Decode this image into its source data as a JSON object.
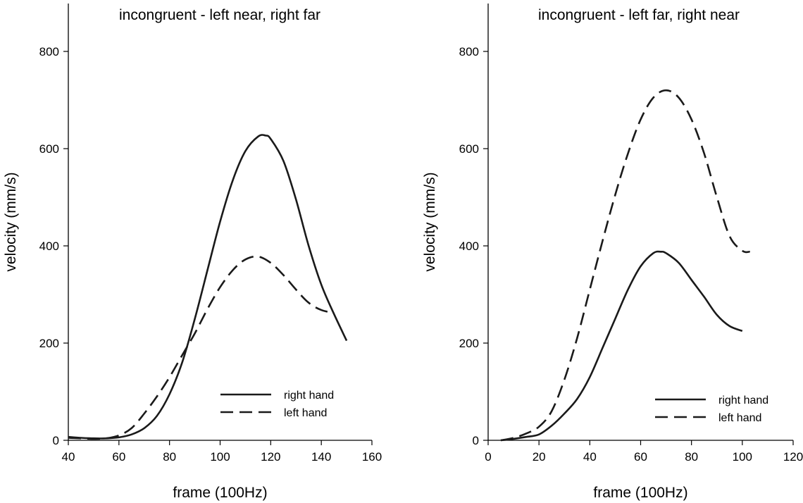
{
  "chart_data": [
    {
      "type": "line",
      "title": "incongruent - left near, right far",
      "xlabel": "frame (100Hz)",
      "ylabel": "velocity (mm/s)",
      "xlim": [
        40,
        160
      ],
      "ylim": [
        0,
        880
      ],
      "xticks": [
        40,
        60,
        80,
        100,
        120,
        140,
        160
      ],
      "yticks": [
        0,
        200,
        400,
        600,
        800
      ],
      "xtick_labels": [
        "40",
        "60",
        "80",
        "100",
        "120",
        "140",
        "160"
      ],
      "ytick_labels": [
        "0",
        "200",
        "400",
        "600",
        "800"
      ],
      "legend_position": "bottom-right",
      "series": [
        {
          "name": "right hand",
          "style": "solid",
          "x": [
            40,
            45,
            50,
            55,
            60,
            65,
            70,
            75,
            80,
            85,
            90,
            95,
            100,
            105,
            110,
            115,
            118,
            120,
            125,
            130,
            135,
            140,
            145,
            150
          ],
          "y": [
            7,
            5,
            4,
            4,
            6,
            12,
            25,
            50,
            95,
            160,
            250,
            350,
            450,
            535,
            595,
            625,
            627,
            620,
            575,
            495,
            400,
            320,
            260,
            205
          ]
        },
        {
          "name": "left hand",
          "style": "dashed",
          "x": [
            40,
            45,
            50,
            55,
            60,
            65,
            70,
            75,
            80,
            85,
            90,
            95,
            100,
            105,
            110,
            115,
            120,
            125,
            130,
            135,
            140,
            145
          ],
          "y": [
            5,
            4,
            3,
            4,
            10,
            25,
            55,
            90,
            130,
            175,
            220,
            270,
            315,
            350,
            372,
            378,
            365,
            340,
            310,
            283,
            268,
            262
          ]
        }
      ]
    },
    {
      "type": "line",
      "title": "incongruent - left far, right near",
      "xlabel": "frame (100Hz)",
      "ylabel": "velocity (mm/s)",
      "xlim": [
        0,
        120
      ],
      "ylim": [
        0,
        880
      ],
      "xticks": [
        0,
        20,
        40,
        60,
        80,
        100,
        120
      ],
      "yticks": [
        0,
        200,
        400,
        600,
        800
      ],
      "xtick_labels": [
        "0",
        "20",
        "40",
        "60",
        "80",
        "100",
        "120"
      ],
      "ytick_labels": [
        "0",
        "200",
        "400",
        "600",
        "800"
      ],
      "legend_position": "bottom-right",
      "series": [
        {
          "name": "right hand",
          "style": "solid",
          "x": [
            5,
            10,
            15,
            20,
            25,
            30,
            35,
            40,
            45,
            50,
            55,
            60,
            65,
            68,
            70,
            75,
            80,
            85,
            90,
            95,
            100
          ],
          "y": [
            0,
            3,
            7,
            12,
            30,
            55,
            85,
            130,
            190,
            250,
            310,
            358,
            385,
            388,
            385,
            365,
            330,
            295,
            258,
            235,
            225
          ]
        },
        {
          "name": "left hand",
          "style": "dashed",
          "x": [
            5,
            10,
            15,
            20,
            25,
            30,
            35,
            40,
            45,
            50,
            55,
            60,
            65,
            70,
            75,
            80,
            85,
            90,
            95,
            100,
            103
          ],
          "y": [
            0,
            5,
            14,
            28,
            60,
            125,
            210,
            310,
            410,
            505,
            590,
            660,
            705,
            720,
            705,
            660,
            590,
            500,
            420,
            390,
            388
          ]
        }
      ]
    }
  ]
}
